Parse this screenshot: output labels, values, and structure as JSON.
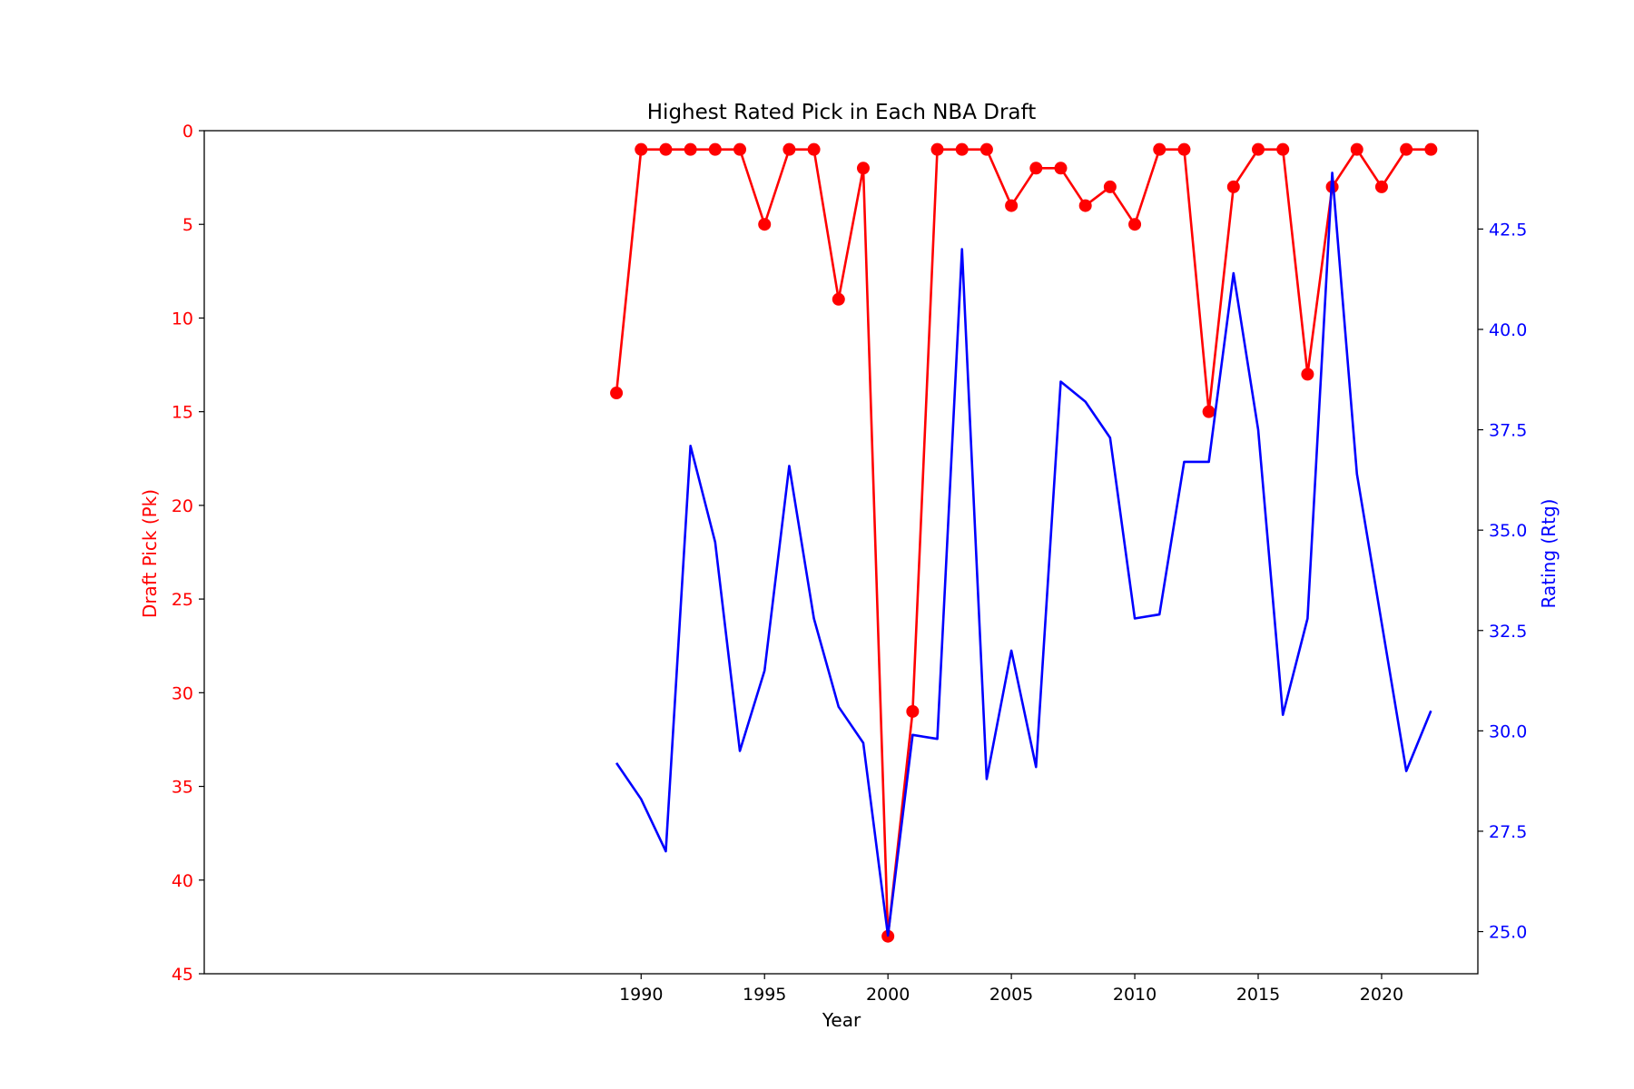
{
  "chart_data": {
    "type": "line",
    "title": "Highest Rated Pick in Each NBA Draft",
    "xlabel": "Year",
    "ylabel_left": "Draft Pick (Pk)",
    "ylabel_right": "Rating (Rtg)",
    "xlim": [
      1972.3,
      2023.9
    ],
    "ylim_left": [
      45,
      0
    ],
    "ylim_right": [
      23.95,
      44.95
    ],
    "left_axis_inverted": true,
    "x_ticks": [
      1990,
      1995,
      2000,
      2005,
      2010,
      2015,
      2020
    ],
    "y_left_ticks": [
      0,
      5,
      10,
      15,
      20,
      25,
      30,
      35,
      40,
      45
    ],
    "y_right_ticks": [
      "25.0",
      "27.5",
      "30.0",
      "32.5",
      "35.0",
      "37.5",
      "40.0",
      "42.5"
    ],
    "grid": false,
    "x": [
      1989,
      1990,
      1991,
      1992,
      1993,
      1994,
      1995,
      1996,
      1997,
      1998,
      1999,
      2000,
      2001,
      2002,
      2003,
      2004,
      2005,
      2006,
      2007,
      2008,
      2009,
      2010,
      2011,
      2012,
      2013,
      2014,
      2015,
      2016,
      2017,
      2018,
      2019,
      2020,
      2021,
      2022
    ],
    "series": [
      {
        "name": "Draft Pick (Pk)",
        "axis": "left",
        "color": "#ff0000",
        "marker": "circle",
        "values": [
          14,
          1,
          1,
          1,
          1,
          1,
          5,
          1,
          1,
          9,
          2,
          43,
          31,
          1,
          1,
          1,
          4,
          2,
          2,
          4,
          3,
          5,
          1,
          1,
          15,
          3,
          1,
          1,
          13,
          3,
          1,
          3,
          1,
          1
        ]
      },
      {
        "name": "Rating (Rtg)",
        "axis": "right",
        "color": "#0000ff",
        "marker": "none",
        "values": [
          29.2,
          28.3,
          27.0,
          37.1,
          34.7,
          29.5,
          31.5,
          36.6,
          32.8,
          30.6,
          29.7,
          24.9,
          29.9,
          29.8,
          42.0,
          28.8,
          32.0,
          29.1,
          38.7,
          38.2,
          37.3,
          32.8,
          32.9,
          36.7,
          36.7,
          41.4,
          37.5,
          30.4,
          32.8,
          43.9,
          36.4,
          32.7,
          29.0,
          30.5
        ]
      }
    ]
  }
}
